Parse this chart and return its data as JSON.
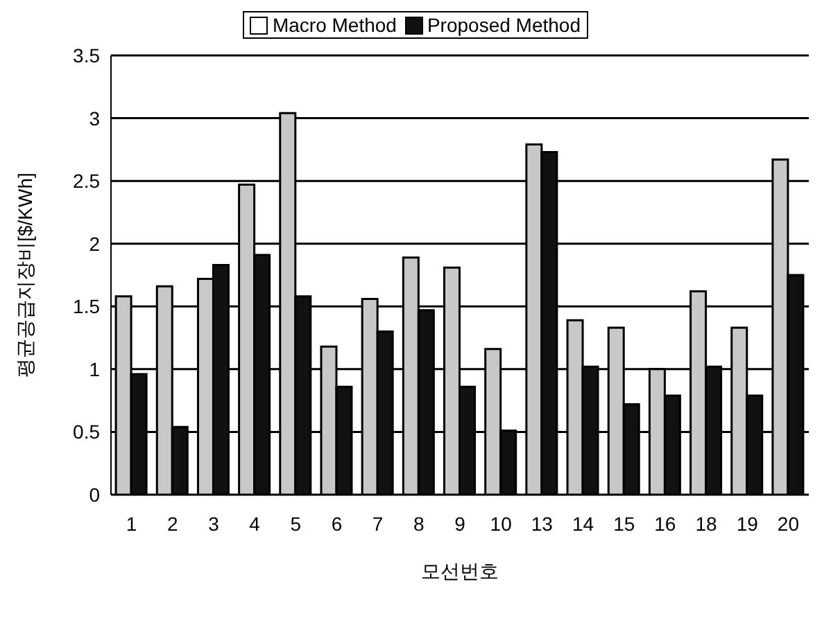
{
  "chart_data": {
    "type": "bar",
    "xlabel": "모선번호",
    "ylabel": "평균공급지장비[$/KWh]",
    "categories": [
      "1",
      "2",
      "3",
      "4",
      "5",
      "6",
      "7",
      "8",
      "9",
      "10",
      "13",
      "14",
      "15",
      "16",
      "18",
      "19",
      "20"
    ],
    "series": [
      {
        "name": "Macro Method",
        "color": "#c8c8c8",
        "values": [
          1.58,
          1.66,
          1.72,
          2.47,
          3.04,
          1.18,
          1.56,
          1.89,
          1.81,
          1.16,
          2.79,
          1.39,
          1.33,
          1.0,
          1.62,
          1.33,
          2.67
        ]
      },
      {
        "name": "Proposed Method",
        "color": "#111111",
        "values": [
          0.96,
          0.54,
          1.83,
          1.91,
          1.58,
          0.86,
          1.3,
          1.47,
          0.86,
          0.51,
          2.73,
          1.02,
          0.72,
          0.79,
          1.02,
          0.79,
          1.75
        ]
      }
    ],
    "ylim": [
      0,
      3.5
    ],
    "yticks": [
      0,
      0.5,
      1,
      1.5,
      2,
      2.5,
      3,
      3.5
    ],
    "grid": "y",
    "legend": "top"
  }
}
